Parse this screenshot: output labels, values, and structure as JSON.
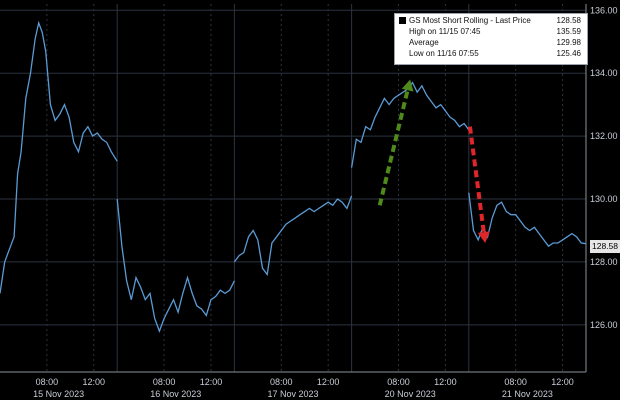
{
  "chart_data": {
    "type": "line",
    "legend": {
      "title": "GS Most Short Rolling - Last Price",
      "last_value": "128.58",
      "rows": [
        {
          "label": "High on 11/15 07:45",
          "value": "135.59"
        },
        {
          "label": "Average",
          "value": "129.98"
        },
        {
          "label": "Low on 11/16 07:55",
          "value": "125.46"
        }
      ],
      "placement": "top-right"
    },
    "last_price_label": "128.58",
    "ylim": [
      124.5,
      136.2
    ],
    "y_ticks": [
      "126.00",
      "128.00",
      "130.00",
      "132.00",
      "134.00",
      "136.00"
    ],
    "y_tick_values": [
      126,
      128,
      130,
      132,
      134,
      136
    ],
    "x_ticks": [
      {
        "label": "08:00",
        "day": 0,
        "hour": 8
      },
      {
        "label": "12:00",
        "day": 0,
        "hour": 12
      },
      {
        "label": "08:00",
        "day": 1,
        "hour": 8
      },
      {
        "label": "12:00",
        "day": 1,
        "hour": 12
      },
      {
        "label": "08:00",
        "day": 2,
        "hour": 8
      },
      {
        "label": "12:00",
        "day": 2,
        "hour": 12
      },
      {
        "label": "08:00",
        "day": 3,
        "hour": 8
      },
      {
        "label": "12:00",
        "day": 3,
        "hour": 12
      },
      {
        "label": "08:00",
        "day": 4,
        "hour": 8
      },
      {
        "label": "12:00",
        "day": 4,
        "hour": 12
      }
    ],
    "day_labels": [
      "15 Nov 2023",
      "16 Nov 2023",
      "17 Nov 2023",
      "20 Nov 2023",
      "21 Nov 2023"
    ],
    "grid": true,
    "series": [
      {
        "color": "#5b9bd5",
        "points": [
          [
            0,
            4.0,
            127.0
          ],
          [
            0,
            4.4,
            128.0
          ],
          [
            0,
            4.8,
            128.4
          ],
          [
            0,
            5.2,
            128.8
          ],
          [
            0,
            5.5,
            130.8
          ],
          [
            0,
            5.8,
            131.5
          ],
          [
            0,
            6.2,
            133.2
          ],
          [
            0,
            6.6,
            134.0
          ],
          [
            0,
            7.0,
            135.1
          ],
          [
            0,
            7.3,
            135.6
          ],
          [
            0,
            7.6,
            135.3
          ],
          [
            0,
            7.9,
            134.7
          ],
          [
            0,
            8.3,
            133.0
          ],
          [
            0,
            8.7,
            132.5
          ],
          [
            0,
            9.1,
            132.7
          ],
          [
            0,
            9.5,
            133.0
          ],
          [
            0,
            9.9,
            132.6
          ],
          [
            0,
            10.3,
            131.8
          ],
          [
            0,
            10.7,
            131.5
          ],
          [
            0,
            11.1,
            132.1
          ],
          [
            0,
            11.5,
            132.3
          ],
          [
            0,
            11.9,
            132.0
          ],
          [
            0,
            12.3,
            132.1
          ],
          [
            0,
            12.7,
            131.9
          ],
          [
            0,
            13.1,
            131.8
          ],
          [
            0,
            13.5,
            131.5
          ],
          [
            0,
            14.0,
            131.2
          ],
          [
            1,
            4.0,
            130.0
          ],
          [
            1,
            4.4,
            128.5
          ],
          [
            1,
            4.8,
            127.4
          ],
          [
            1,
            5.2,
            126.8
          ],
          [
            1,
            5.6,
            127.5
          ],
          [
            1,
            6.0,
            127.2
          ],
          [
            1,
            6.4,
            126.8
          ],
          [
            1,
            6.8,
            127.0
          ],
          [
            1,
            7.2,
            126.2
          ],
          [
            1,
            7.6,
            125.8
          ],
          [
            1,
            8.0,
            126.2
          ],
          [
            1,
            8.4,
            126.5
          ],
          [
            1,
            8.8,
            126.8
          ],
          [
            1,
            9.2,
            126.4
          ],
          [
            1,
            9.6,
            127.0
          ],
          [
            1,
            10.0,
            127.5
          ],
          [
            1,
            10.4,
            127.0
          ],
          [
            1,
            10.8,
            126.6
          ],
          [
            1,
            11.2,
            126.5
          ],
          [
            1,
            11.6,
            126.3
          ],
          [
            1,
            12.0,
            126.8
          ],
          [
            1,
            12.4,
            126.9
          ],
          [
            1,
            12.8,
            127.1
          ],
          [
            1,
            13.2,
            127.0
          ],
          [
            1,
            13.6,
            127.1
          ],
          [
            1,
            14.0,
            127.4
          ],
          [
            2,
            4.0,
            128.0
          ],
          [
            2,
            4.4,
            128.2
          ],
          [
            2,
            4.8,
            128.3
          ],
          [
            2,
            5.2,
            128.8
          ],
          [
            2,
            5.6,
            129.0
          ],
          [
            2,
            6.0,
            128.7
          ],
          [
            2,
            6.4,
            127.8
          ],
          [
            2,
            6.8,
            127.6
          ],
          [
            2,
            7.2,
            128.6
          ],
          [
            2,
            7.6,
            128.8
          ],
          [
            2,
            8.0,
            129.0
          ],
          [
            2,
            8.4,
            129.2
          ],
          [
            2,
            8.8,
            129.3
          ],
          [
            2,
            9.2,
            129.4
          ],
          [
            2,
            9.6,
            129.5
          ],
          [
            2,
            10.0,
            129.6
          ],
          [
            2,
            10.4,
            129.7
          ],
          [
            2,
            10.8,
            129.6
          ],
          [
            2,
            11.2,
            129.7
          ],
          [
            2,
            11.6,
            129.8
          ],
          [
            2,
            12.0,
            129.9
          ],
          [
            2,
            12.4,
            129.8
          ],
          [
            2,
            12.8,
            130.0
          ],
          [
            2,
            13.2,
            129.9
          ],
          [
            2,
            13.6,
            129.7
          ],
          [
            2,
            14.0,
            130.1
          ],
          [
            3,
            4.0,
            131.0
          ],
          [
            3,
            4.4,
            131.9
          ],
          [
            3,
            4.8,
            131.8
          ],
          [
            3,
            5.2,
            132.3
          ],
          [
            3,
            5.6,
            132.2
          ],
          [
            3,
            6.0,
            132.6
          ],
          [
            3,
            6.4,
            132.9
          ],
          [
            3,
            6.8,
            133.2
          ],
          [
            3,
            7.2,
            133.0
          ],
          [
            3,
            7.6,
            133.2
          ],
          [
            3,
            8.0,
            133.3
          ],
          [
            3,
            8.4,
            133.4
          ],
          [
            3,
            8.8,
            133.5
          ],
          [
            3,
            9.2,
            133.7
          ],
          [
            3,
            9.6,
            133.4
          ],
          [
            3,
            10.0,
            133.6
          ],
          [
            3,
            10.4,
            133.3
          ],
          [
            3,
            10.8,
            133.1
          ],
          [
            3,
            11.2,
            132.9
          ],
          [
            3,
            11.6,
            133.0
          ],
          [
            3,
            12.0,
            132.8
          ],
          [
            3,
            12.4,
            132.6
          ],
          [
            3,
            12.8,
            132.5
          ],
          [
            3,
            13.2,
            132.3
          ],
          [
            3,
            13.6,
            132.4
          ],
          [
            3,
            14.0,
            132.2
          ],
          [
            4,
            4.0,
            130.2
          ],
          [
            4,
            4.4,
            129.0
          ],
          [
            4,
            4.8,
            128.7
          ],
          [
            4,
            5.2,
            129.1
          ],
          [
            4,
            5.6,
            128.8
          ],
          [
            4,
            6.0,
            129.4
          ],
          [
            4,
            6.4,
            129.8
          ],
          [
            4,
            6.8,
            129.9
          ],
          [
            4,
            7.2,
            129.6
          ],
          [
            4,
            7.6,
            129.5
          ],
          [
            4,
            8.0,
            129.5
          ],
          [
            4,
            8.4,
            129.3
          ],
          [
            4,
            8.8,
            129.1
          ],
          [
            4,
            9.2,
            129.0
          ],
          [
            4,
            9.6,
            129.1
          ],
          [
            4,
            10.0,
            128.9
          ],
          [
            4,
            10.4,
            128.7
          ],
          [
            4,
            10.8,
            128.5
          ],
          [
            4,
            11.2,
            128.6
          ],
          [
            4,
            11.6,
            128.6
          ],
          [
            4,
            12.0,
            128.7
          ],
          [
            4,
            12.4,
            128.8
          ],
          [
            4,
            12.8,
            128.9
          ],
          [
            4,
            13.2,
            128.8
          ],
          [
            4,
            13.6,
            128.6
          ],
          [
            4,
            14.0,
            128.58
          ]
        ]
      }
    ],
    "annotations": [
      {
        "kind": "dashed-arrow",
        "color": "#4f8a1a",
        "from": [
          3,
          6.4,
          129.8
        ],
        "to": [
          3,
          9.0,
          133.8
        ]
      },
      {
        "kind": "dashed-arrow",
        "color": "#e0262a",
        "from": [
          4,
          4.1,
          132.3
        ],
        "to": [
          4,
          5.4,
          128.6
        ]
      }
    ]
  }
}
